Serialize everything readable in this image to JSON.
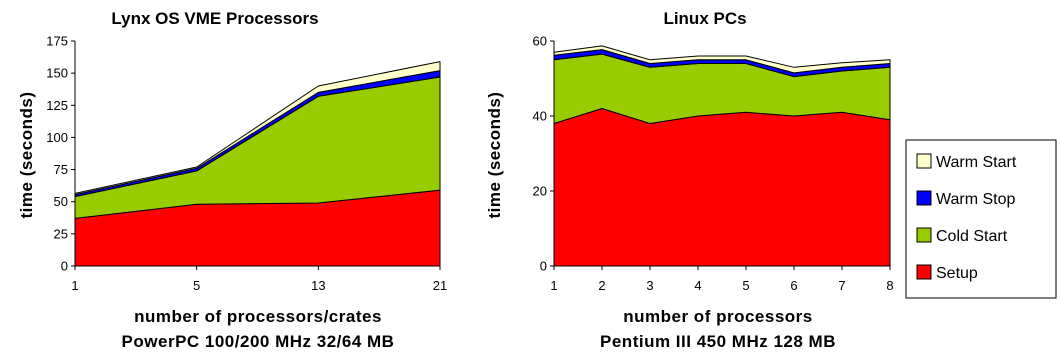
{
  "colors": {
    "setup": "#ff0000",
    "cold_start": "#99cc00",
    "warm_stop": "#0000ff",
    "warm_start": "#ffffcc",
    "stroke": "#000000"
  },
  "legend": {
    "entries": [
      "Warm Start",
      "Warm Stop",
      "Cold Start",
      "Setup"
    ]
  },
  "chart_data": [
    {
      "type": "area",
      "stacked": true,
      "title": "Lynx OS VME Processors",
      "xlabel": "number of processors/crates",
      "subtitle": "PowerPC 100/200 MHz 32/64 MB",
      "ylabel": "time (seconds)",
      "categories": [
        "1",
        "5",
        "13",
        "21"
      ],
      "ylim": [
        0,
        175
      ],
      "yticks": [
        "0",
        "25",
        "50",
        "75",
        "100",
        "125",
        "150",
        "175"
      ],
      "series": [
        {
          "name": "Setup",
          "values": [
            37,
            48,
            49,
            59
          ]
        },
        {
          "name": "Cold Start",
          "values": [
            17,
            26,
            83,
            88
          ]
        },
        {
          "name": "Warm Stop",
          "values": [
            1.5,
            2,
            3,
            5
          ]
        },
        {
          "name": "Warm Start",
          "values": [
            1,
            1,
            5,
            7
          ]
        }
      ]
    },
    {
      "type": "area",
      "stacked": true,
      "title": "Linux PCs",
      "xlabel": "number of processors",
      "subtitle": "Pentium III 450 MHz 128 MB",
      "ylabel": "time (seconds)",
      "categories": [
        "1",
        "2",
        "3",
        "4",
        "5",
        "6",
        "7",
        "8"
      ],
      "ylim": [
        0,
        60
      ],
      "yticks": [
        "0",
        "20",
        "40",
        "60"
      ],
      "series": [
        {
          "name": "Setup",
          "values": [
            38,
            42,
            38,
            40,
            41,
            40,
            41,
            39
          ]
        },
        {
          "name": "Cold Start",
          "values": [
            17,
            14.5,
            15,
            14,
            13,
            10.5,
            11,
            14
          ]
        },
        {
          "name": "Warm Stop",
          "values": [
            1.2,
            1.2,
            1,
            1,
            1,
            1,
            1,
            1
          ]
        },
        {
          "name": "Warm Start",
          "values": [
            0.8,
            1,
            1,
            1,
            1,
            1.5,
            1.2,
            1
          ]
        }
      ]
    }
  ]
}
